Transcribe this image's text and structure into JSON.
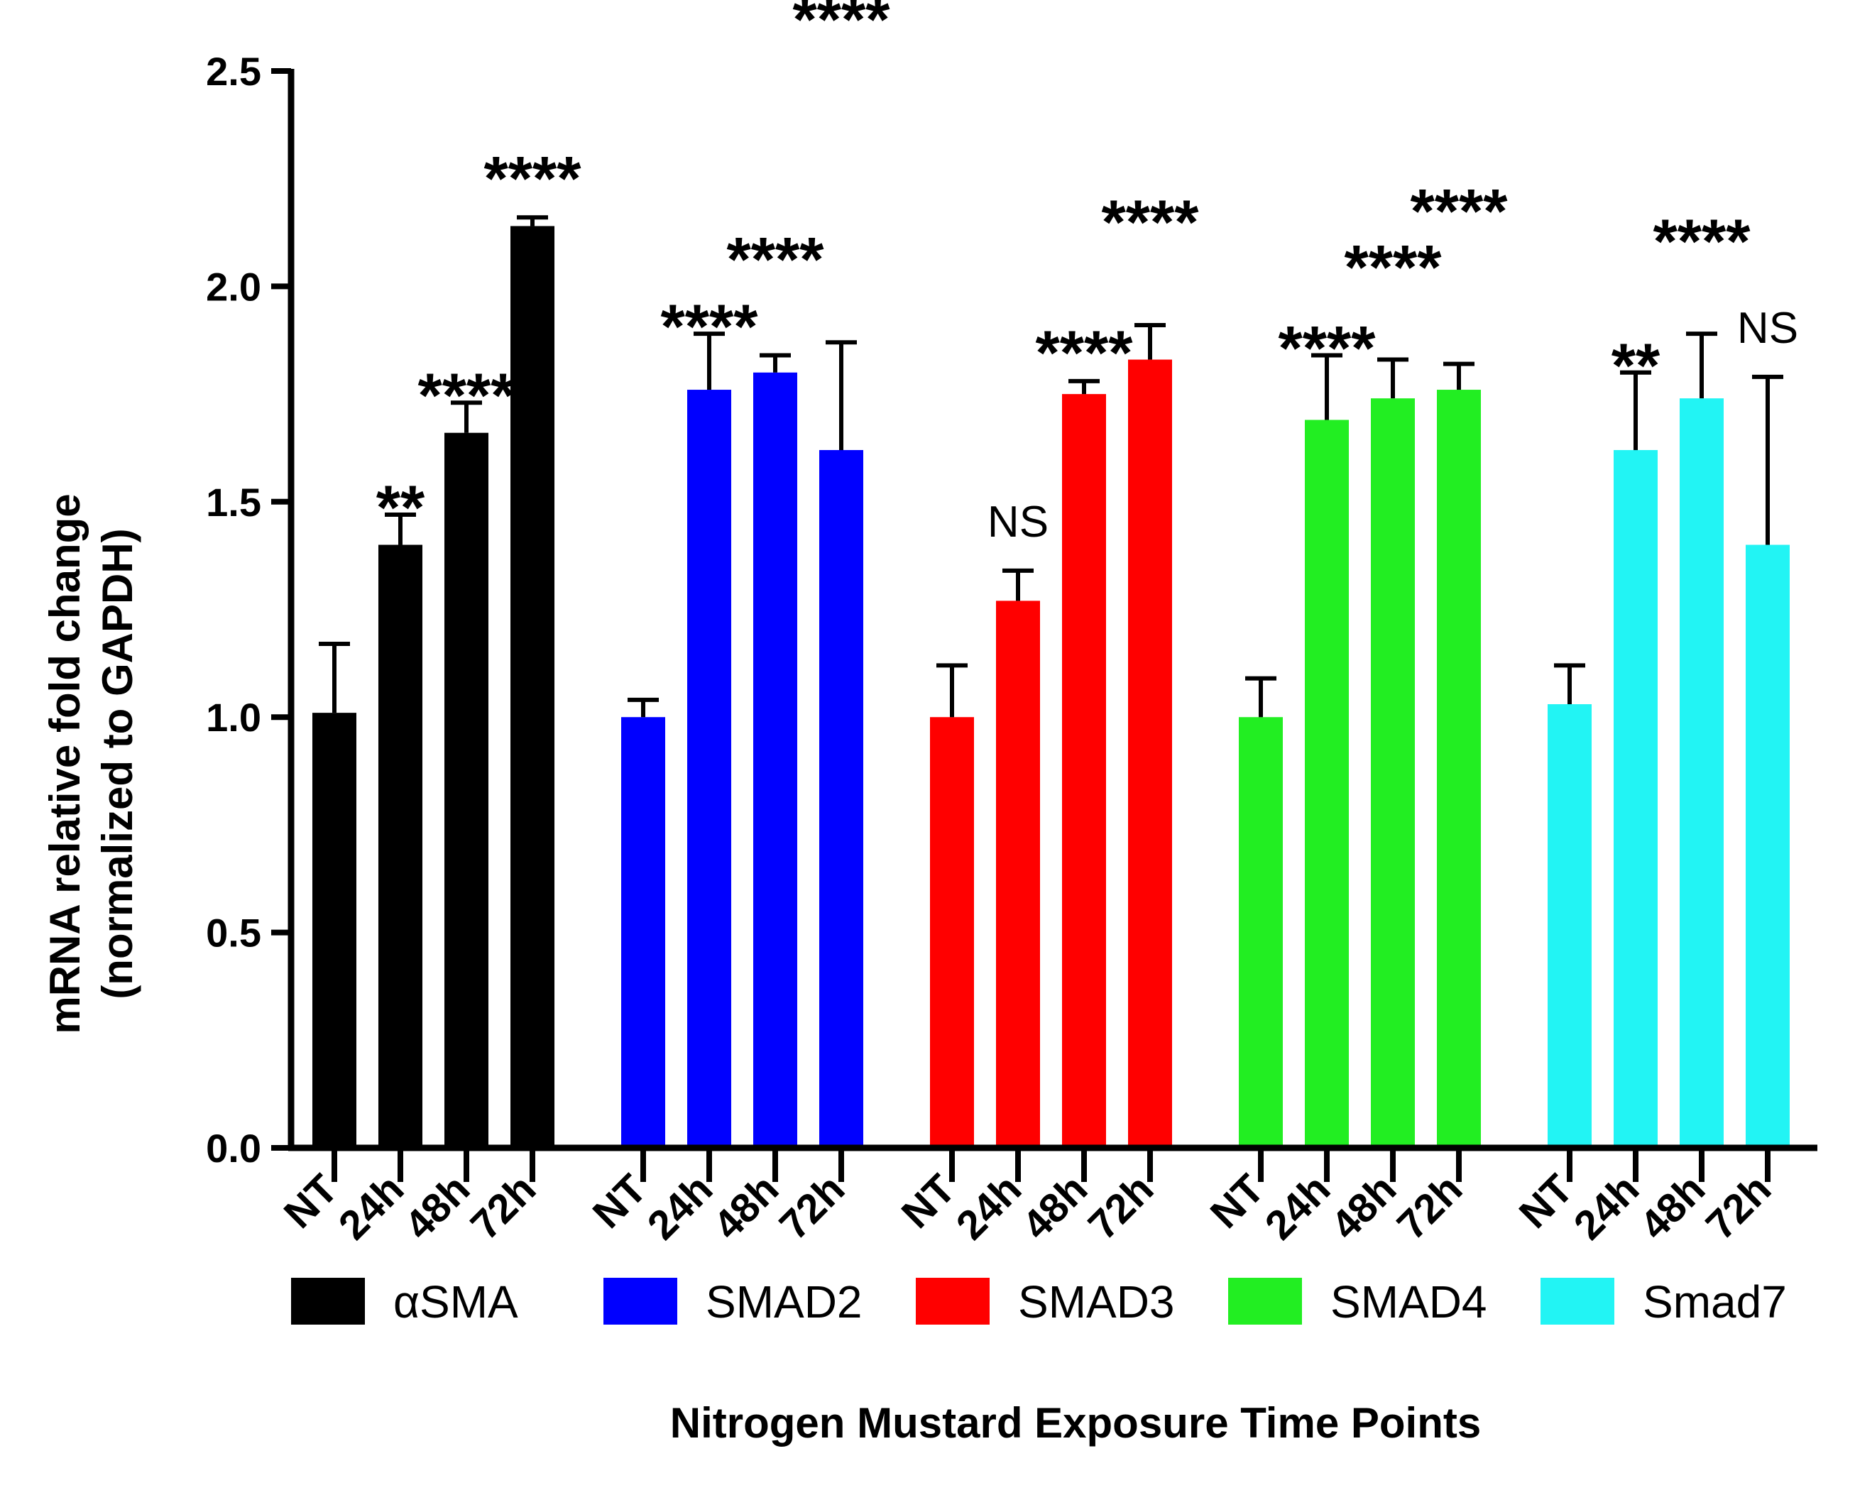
{
  "chart_data": {
    "type": "bar",
    "title": "",
    "xlabel": "Nitrogen Mustard Exposure Time Points",
    "ylabel_line1": "mRNA relative fold change",
    "ylabel_line2": "(normalized to GAPDH)",
    "ylim": [
      0,
      2.5
    ],
    "yticks": [
      "0.0",
      "0.5",
      "1.0",
      "1.5",
      "2.0",
      "2.5"
    ],
    "categories": [
      "NT",
      "24h",
      "48h",
      "72h"
    ],
    "grid": false,
    "legend_position": "bottom",
    "series": [
      {
        "name": "αSMA",
        "color": "#000000",
        "values": [
          1.01,
          1.4,
          1.66,
          2.14
        ],
        "errors": [
          0.16,
          0.07,
          0.07,
          0.02
        ],
        "annotations": [
          "",
          "**",
          "****",
          "****"
        ]
      },
      {
        "name": "SMAD2",
        "color": "#0000ff",
        "values": [
          1.0,
          1.76,
          1.8,
          1.62
        ],
        "errors": [
          0.04,
          0.13,
          0.04,
          0.25
        ],
        "annotations": [
          "",
          "****",
          "****",
          "****"
        ]
      },
      {
        "name": "SMAD3",
        "color": "#ff0000",
        "values": [
          1.0,
          1.27,
          1.75,
          1.83
        ],
        "errors": [
          0.12,
          0.07,
          0.03,
          0.08
        ],
        "annotations": [
          "",
          "NS",
          "****",
          "****"
        ]
      },
      {
        "name": "SMAD4",
        "color": "#22ee22",
        "values": [
          1.0,
          1.69,
          1.74,
          1.76
        ],
        "errors": [
          0.09,
          0.15,
          0.09,
          0.06
        ],
        "annotations": [
          "",
          "****",
          "****",
          "****"
        ]
      },
      {
        "name": "Smad7",
        "color": "#22f4f4",
        "values": [
          1.03,
          1.62,
          1.74,
          1.4
        ],
        "errors": [
          0.09,
          0.18,
          0.15,
          0.39
        ],
        "annotations": [
          "",
          "**",
          "****",
          "NS"
        ]
      }
    ]
  }
}
